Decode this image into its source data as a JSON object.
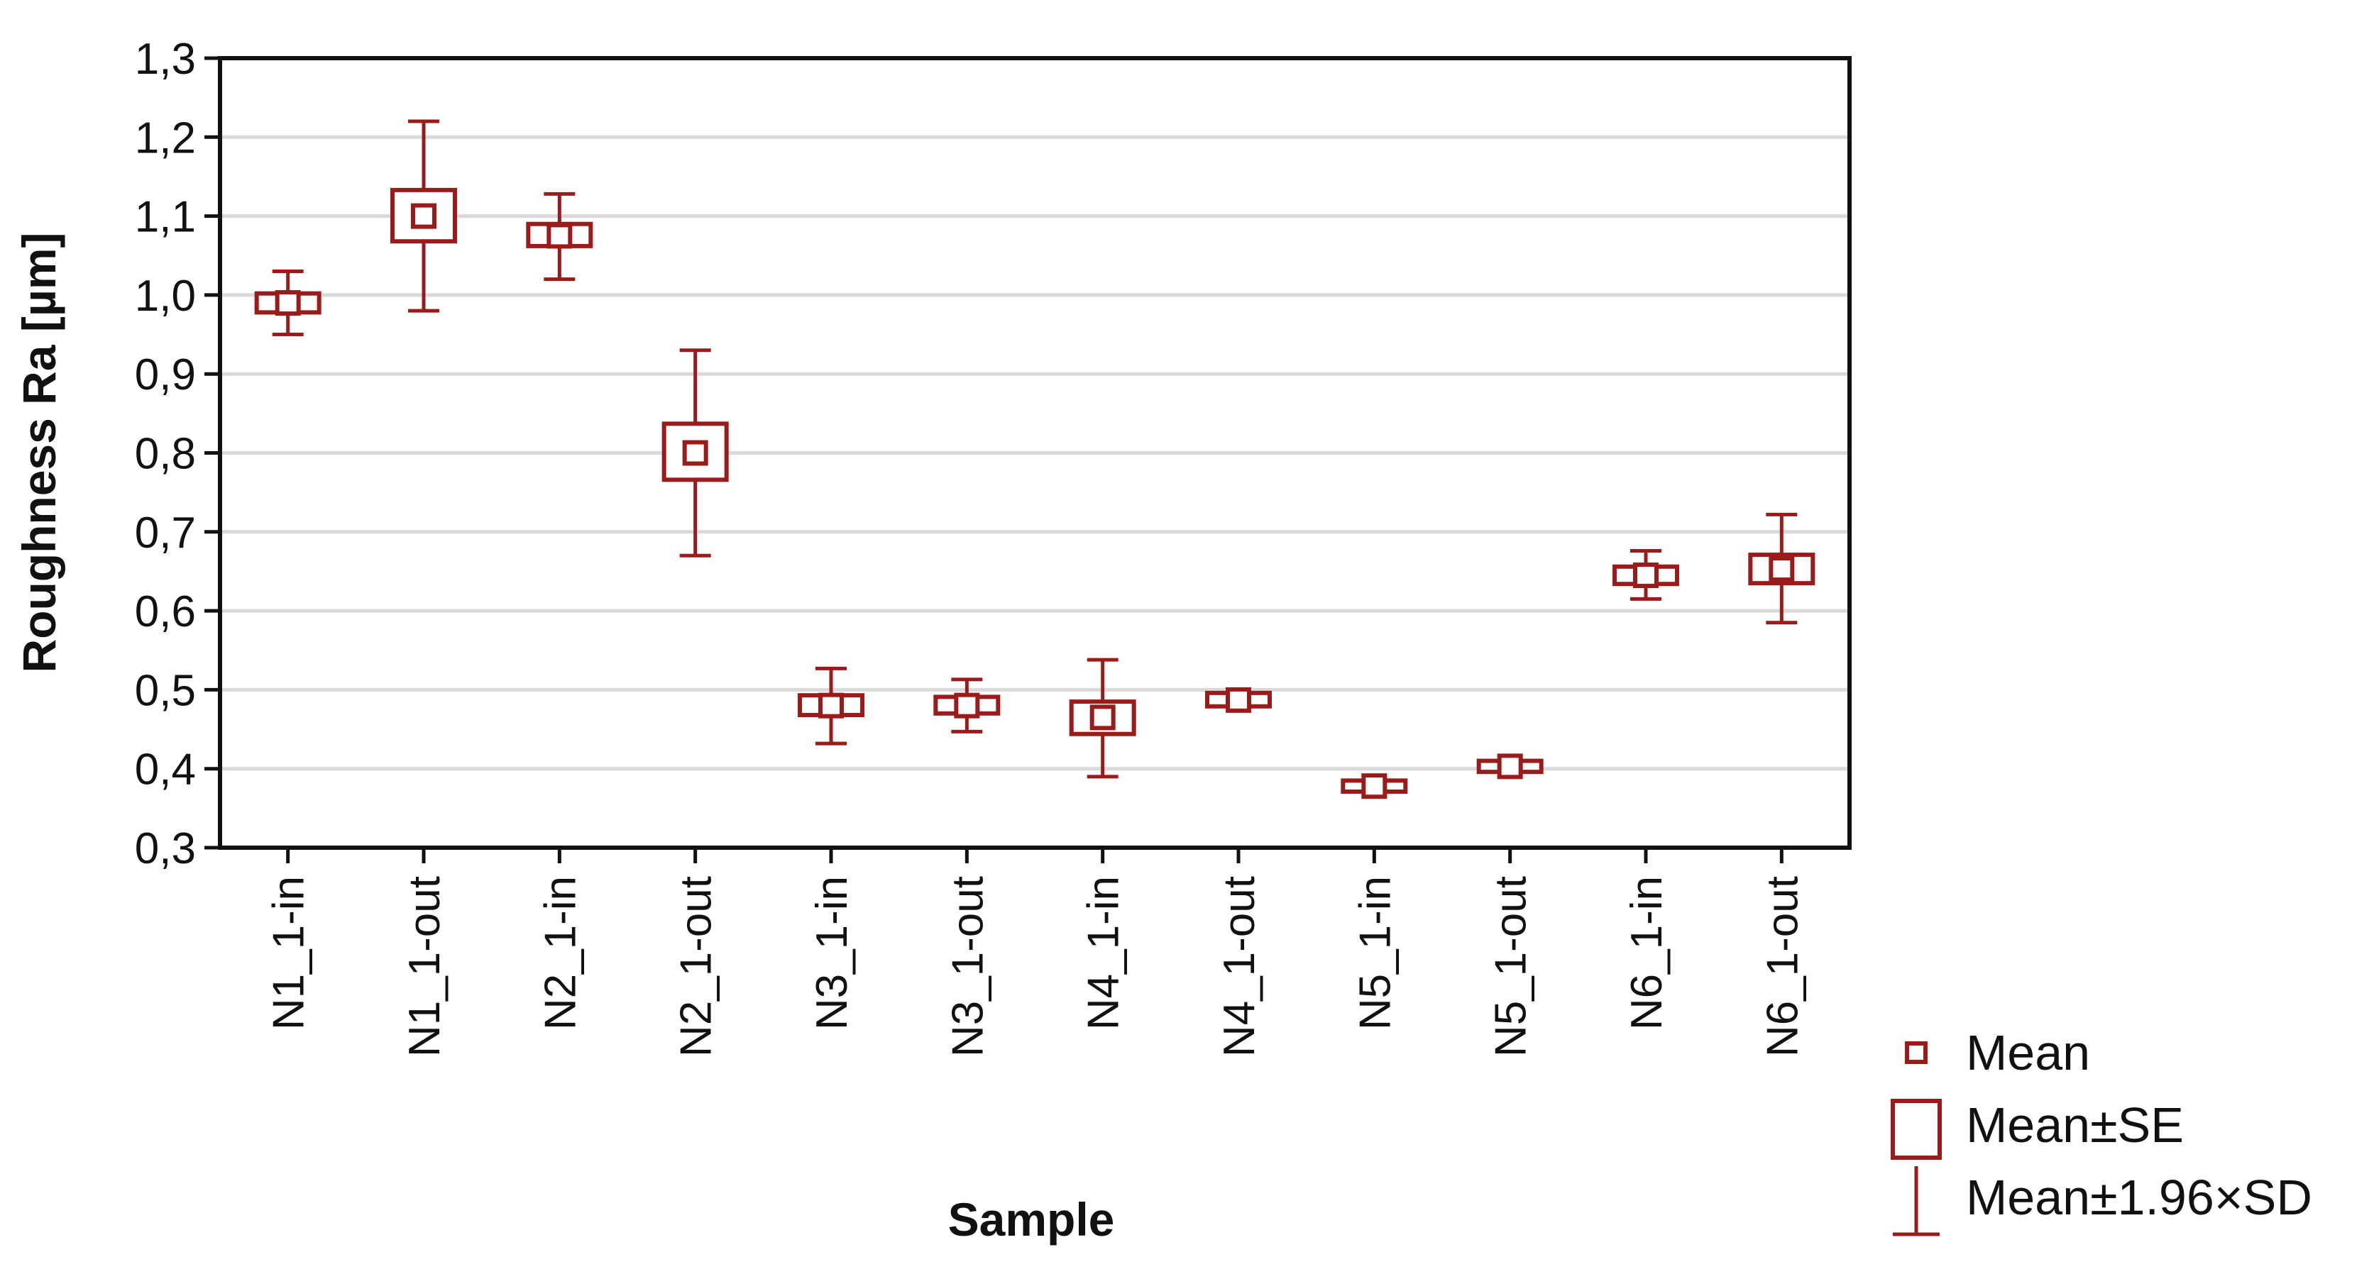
{
  "chart_data": {
    "type": "box",
    "title": "",
    "xlabel": "Sample",
    "ylabel": "Roughness Ra [µm]",
    "ylim": [
      0.3,
      1.3
    ],
    "yticks": [
      0.3,
      0.4,
      0.5,
      0.6,
      0.7,
      0.8,
      0.9,
      1.0,
      1.1,
      1.2,
      1.3
    ],
    "ytick_labels": [
      "0,3",
      "0,4",
      "0,5",
      "0,6",
      "0,7",
      "0,8",
      "0,9",
      "1,0",
      "1,1",
      "1,2",
      "1,3"
    ],
    "grid": "horizontal",
    "legend_position": "bottom-right, outside plot",
    "color": "#9b1b1b",
    "categories": [
      "N1_1-in",
      "N1_1-out",
      "N2_1-in",
      "N2_1-out",
      "N3_1-in",
      "N3_1-out",
      "N4_1-in",
      "N4_1-out",
      "N5_1-in",
      "N5_1-out",
      "N6_1-in",
      "N6_1-out"
    ],
    "mean": [
      0.99,
      1.1,
      1.075,
      0.8,
      0.48,
      0.48,
      0.465,
      0.487,
      0.378,
      0.403,
      0.645,
      0.653
    ],
    "se_low": [
      0.978,
      1.068,
      1.062,
      0.766,
      0.468,
      0.47,
      0.444,
      0.479,
      0.371,
      0.396,
      0.634,
      0.635
    ],
    "se_high": [
      1.002,
      1.133,
      1.09,
      0.837,
      0.493,
      0.491,
      0.485,
      0.496,
      0.385,
      0.41,
      0.656,
      0.671
    ],
    "sd_low": [
      0.95,
      0.98,
      1.02,
      0.67,
      0.432,
      0.447,
      0.39,
      0.488,
      0.372,
      0.404,
      0.615,
      0.585
    ],
    "sd_high": [
      1.03,
      1.22,
      1.128,
      0.93,
      0.527,
      0.513,
      0.538,
      0.488,
      0.384,
      0.404,
      0.676,
      0.722
    ],
    "legend": [
      {
        "symbol": "mean",
        "label": "Mean"
      },
      {
        "symbol": "se",
        "label": "Mean±SE"
      },
      {
        "symbol": "sd",
        "label": "Mean±1.96×SD"
      }
    ]
  }
}
